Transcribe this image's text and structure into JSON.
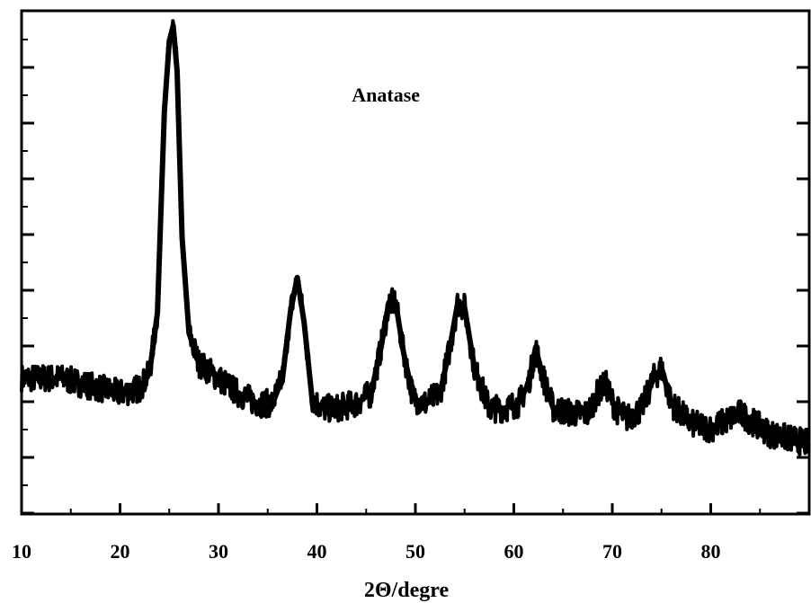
{
  "chart_data": {
    "type": "line",
    "title": "",
    "xlabel": "2Θ/degre",
    "ylabel": "",
    "xlim": [
      10,
      90
    ],
    "ylim": [
      0,
      100
    ],
    "x_ticks": [
      "10",
      "20",
      "30",
      "40",
      "50",
      "60",
      "70",
      "80"
    ],
    "grid": false,
    "legend": "none",
    "annotations": [
      {
        "text": "Anatase",
        "x": 47,
        "y": 82
      }
    ],
    "series": [
      {
        "color": "#000000",
        "x": [
          10,
          12,
          14,
          16,
          18,
          20,
          22,
          23,
          23.8,
          24.5,
          25,
          25.4,
          25.8,
          26.3,
          27,
          28,
          30,
          32,
          34,
          35.5,
          36.5,
          37.3,
          38,
          38.7,
          39.5,
          40.5,
          42,
          44,
          45.5,
          46.5,
          47.3,
          48,
          48.8,
          49.8,
          51,
          52.5,
          53.5,
          54.3,
          55,
          56,
          57.5,
          59,
          60.5,
          61.5,
          62.2,
          63,
          64,
          66,
          67.5,
          68.5,
          69.3,
          70.3,
          71.5,
          73,
          74.2,
          75,
          76,
          78,
          80,
          82,
          83,
          84.5,
          86,
          88,
          90
        ],
        "y": [
          27,
          27,
          27,
          26,
          25,
          24,
          25,
          28,
          40,
          80,
          94,
          97,
          88,
          55,
          36,
          30,
          27,
          24,
          22,
          22,
          27,
          40,
          47,
          38,
          23,
          21,
          21,
          22,
          24,
          33,
          42,
          42,
          32,
          23,
          22,
          24,
          33,
          42,
          41,
          29,
          21,
          21,
          22,
          26,
          33,
          27,
          21,
          20,
          20,
          24,
          26,
          21,
          19,
          21,
          27,
          29,
          22,
          18,
          17,
          19,
          20,
          18,
          16,
          15,
          14
        ]
      }
    ]
  }
}
